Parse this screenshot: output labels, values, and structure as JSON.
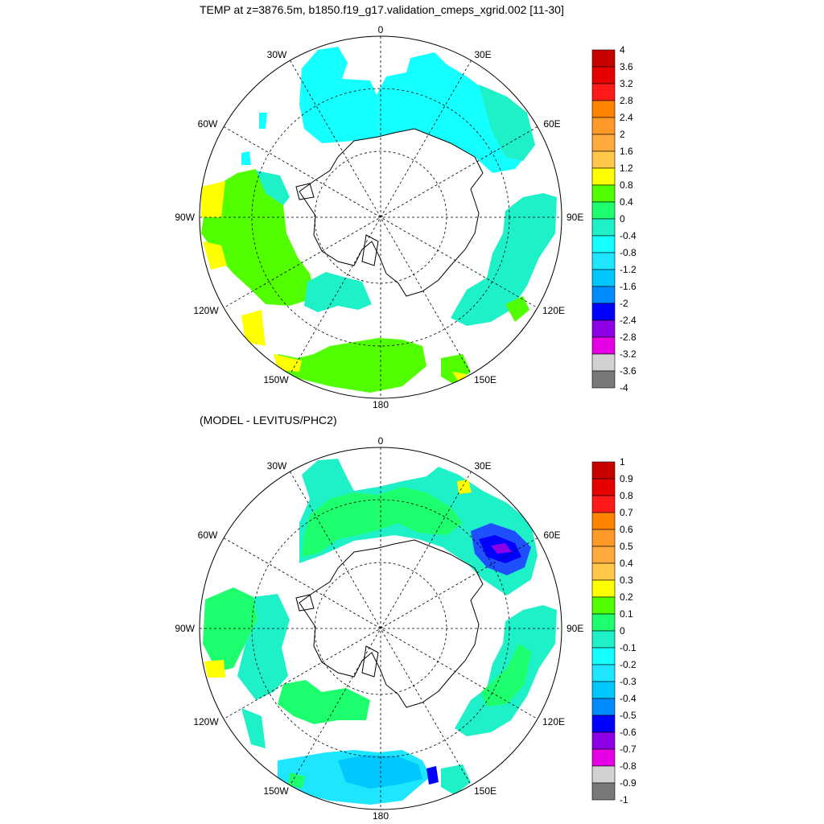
{
  "panels": [
    {
      "title": "TEMP at z=3876.5m, b1850.f19_g17.validation_cmeps_xgrid.002 [11-30]",
      "lon_labels": [
        "0",
        "30E",
        "60E",
        "90E",
        "120E",
        "150E",
        "180",
        "150W",
        "120W",
        "90W",
        "60W",
        "30W"
      ],
      "colorbar": {
        "labels": [
          "4",
          "3.6",
          "3.2",
          "2.8",
          "2.4",
          "2",
          "1.6",
          "1.2",
          "0.8",
          "0.4",
          "0",
          "-0.4",
          "-0.8",
          "-1.2",
          "-1.6",
          "-2",
          "-2.4",
          "-2.8",
          "-3.2",
          "-3.6",
          "-4"
        ],
        "colors": [
          "#c80000",
          "#e60000",
          "#ff1a1a",
          "#ff8200",
          "#ff9a28",
          "#ffaa3c",
          "#ffc84b",
          "#ffff00",
          "#52ff00",
          "#1eff6e",
          "#1ef0c8",
          "#14ffff",
          "#1ee6ff",
          "#00c8ff",
          "#008cff",
          "#0000ff",
          "#8c00e6",
          "#e600e6",
          "#d2d2d2",
          "#787878"
        ]
      }
    },
    {
      "title": "(MODEL - LEVITUS/PHC2)",
      "lon_labels": [
        "0",
        "30E",
        "60E",
        "90E",
        "120E",
        "150E",
        "180",
        "150W",
        "120W",
        "90W",
        "60W",
        "30W"
      ],
      "colorbar": {
        "labels": [
          "1",
          "0.9",
          "0.8",
          "0.7",
          "0.6",
          "0.5",
          "0.4",
          "0.3",
          "0.2",
          "0.1",
          "0",
          "-0.1",
          "-0.2",
          "-0.3",
          "-0.4",
          "-0.5",
          "-0.6",
          "-0.7",
          "-0.8",
          "-0.9",
          "-1"
        ],
        "colors": [
          "#c80000",
          "#e60000",
          "#ff1a1a",
          "#ff8200",
          "#ff9a28",
          "#ffaa3c",
          "#ffc84b",
          "#ffff00",
          "#52ff00",
          "#1eff6e",
          "#1ef0c8",
          "#14ffff",
          "#1ee6ff",
          "#00c8ff",
          "#008cff",
          "#0000ff",
          "#8c00e6",
          "#e600e6",
          "#d2d2d2",
          "#787878"
        ]
      }
    }
  ]
}
